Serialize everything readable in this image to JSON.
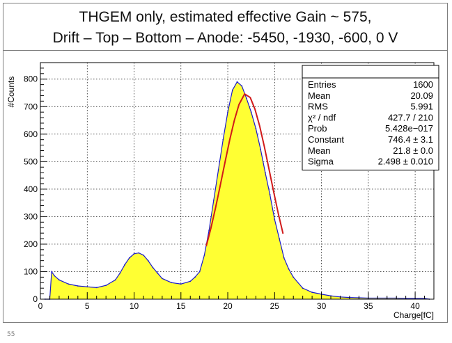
{
  "title_lines": [
    "THGEM only, estimated effective Gain ~ 575,",
    "Drift – Top – Bottom – Anode: -5450, -1930, -600, 0 V"
  ],
  "footer_mark": "55",
  "stats_box": [
    {
      "label": "Entries",
      "value": "1600"
    },
    {
      "label": "Mean",
      "value": "20.09"
    },
    {
      "label": "RMS",
      "value": "5.991"
    },
    {
      "label": "χ² / ndf",
      "value": "427.7 / 210"
    },
    {
      "label": "Prob",
      "value": "5.428e−017"
    },
    {
      "label": "Constant",
      "value": "746.4 ± 3.1"
    },
    {
      "label": "Mean",
      "value": "21.8 ± 0.0"
    },
    {
      "label": "Sigma",
      "value": "2.498 ± 0.010"
    }
  ],
  "colors": {
    "fill": "#ffff33",
    "histogram_line": "#1a1acc",
    "fit_line": "#d11a1a"
  },
  "chart_data": {
    "type": "area",
    "xlabel": "Charge[fC]",
    "ylabel": "#Counts",
    "xlim": [
      0,
      42
    ],
    "ylim": [
      0,
      860
    ],
    "grid": true,
    "x_ticks": [
      0,
      5,
      10,
      15,
      20,
      25,
      30,
      35,
      40
    ],
    "y_ticks": [
      0,
      100,
      200,
      300,
      400,
      500,
      600,
      700,
      800
    ],
    "series": [
      {
        "x": [
          0.5,
          1.0,
          1.2,
          1.5,
          2,
          3,
          4,
          5,
          6,
          7,
          8,
          8.5,
          9,
          9.5,
          10,
          10.5,
          11,
          11.5,
          12,
          12.5,
          13,
          14,
          15,
          16,
          16.5,
          17,
          17.5,
          18,
          18.5,
          19,
          19.5,
          20,
          20.5,
          21,
          21.5,
          22,
          22.5,
          23,
          23.5,
          24,
          24.5,
          25,
          25.5,
          26,
          26.5,
          27,
          28,
          29,
          30,
          31,
          32,
          33,
          34,
          35,
          36,
          37,
          38,
          39,
          40,
          41,
          41.5
        ],
        "values": [
          0,
          0,
          100,
          85,
          70,
          55,
          48,
          45,
          42,
          50,
          70,
          95,
          125,
          150,
          165,
          168,
          160,
          140,
          115,
          95,
          75,
          60,
          55,
          65,
          80,
          100,
          160,
          250,
          360,
          470,
          580,
          680,
          760,
          790,
          775,
          730,
          680,
          620,
          545,
          460,
          380,
          290,
          220,
          150,
          110,
          80,
          40,
          25,
          18,
          12,
          8,
          6,
          5,
          4,
          4,
          4,
          4,
          3,
          3,
          3,
          0
        ]
      },
      {
        "name": "fit",
        "x": [
          17.7,
          18.2,
          18.7,
          19.2,
          19.7,
          20.2,
          20.7,
          21.2,
          21.8,
          22.4,
          22.9,
          23.4,
          23.9,
          24.4,
          24.9,
          25.4,
          25.9
        ],
        "values": [
          193,
          258,
          333,
          414,
          497,
          578,
          650,
          708,
          746,
          733,
          691,
          630,
          555,
          473,
          390,
          310,
          238
        ]
      }
    ]
  }
}
